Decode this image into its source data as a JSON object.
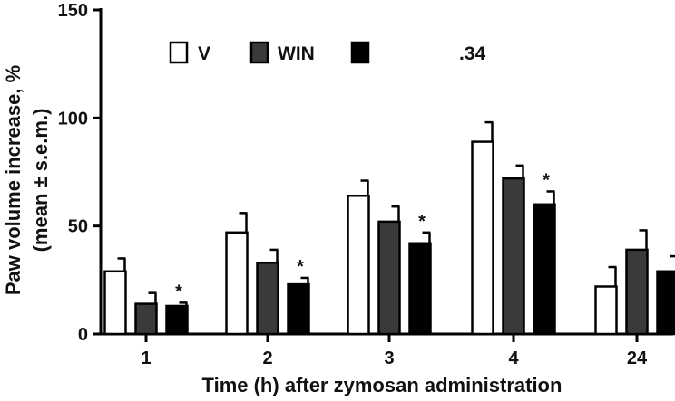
{
  "chart_data": {
    "type": "bar",
    "title": "",
    "xlabel": "Time (h) after zymosan administration",
    "ylabel_line1": "Paw volume increase, %",
    "ylabel_line2": "(mean ± s.e.m.)",
    "ylim": [
      0,
      150
    ],
    "yticks": [
      "0",
      "50",
      "100",
      "150"
    ],
    "categories": [
      "1",
      "2",
      "3",
      "4",
      "24"
    ],
    "series": [
      {
        "name": "V",
        "fill": "#ffffff",
        "values": [
          29,
          47,
          64,
          89,
          22
        ],
        "errors": [
          6,
          9,
          7,
          9,
          9
        ],
        "sig": [
          "",
          "",
          "",
          "",
          ""
        ]
      },
      {
        "name": "WIN",
        "fill": "#3a3a3a",
        "values": [
          14,
          33,
          52,
          72,
          39
        ],
        "errors": [
          5,
          6,
          7,
          6,
          9
        ],
        "sig": [
          "",
          "",
          "",
          "",
          ""
        ]
      },
      {
        "name": ".34",
        "fill": "#000000",
        "values": [
          13,
          23,
          42,
          60,
          29
        ],
        "errors": [
          1.5,
          3,
          5,
          6,
          7
        ],
        "sig": [
          "*",
          "*",
          "*",
          "*",
          ""
        ]
      }
    ],
    "grid": false,
    "legend_position": "top-left"
  },
  "colors": {
    "axis": "#000000",
    "bar_stroke": "#000000"
  }
}
